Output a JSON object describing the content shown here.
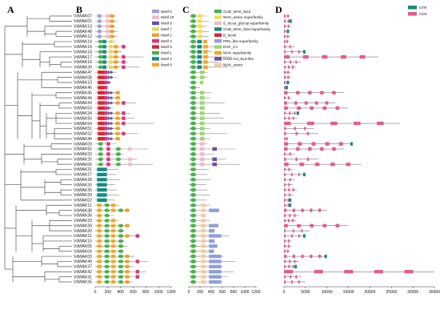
{
  "panels": {
    "a": "A",
    "b": "B",
    "c": "C",
    "d": "D"
  },
  "genes": [
    "VdWAK07",
    "VdWAK01",
    "VdWAK13",
    "VdWAK48",
    "VdWAK12",
    "VdWAK14",
    "VdWAK19",
    "VdWAK18",
    "VdWAK17",
    "VdWAK16",
    "VdWAK39",
    "VdWAK47",
    "VdWAK08",
    "VdWAK10",
    "VdWAK46",
    "VdWAK45",
    "VdWAK44",
    "VdWAK43",
    "VdWAK53",
    "VdWAK34",
    "VdWAK55",
    "VdWAK54",
    "VdWAK51",
    "VdWAK52",
    "VdWAK49",
    "VdWAK09",
    "VdWAK50",
    "VdWAK33",
    "VdWAK25",
    "VdWAK06",
    "VdWAK31",
    "VdWAK27",
    "VdWAK28",
    "VdWAK30",
    "VdWAK26",
    "VdWAK29",
    "VdWAK02",
    "VdWAK11",
    "VdWAK38",
    "VdWAK36",
    "VdWAK23",
    "VdWAK39",
    "VdWAK20",
    "VdWAK21",
    "VdWAK15",
    "VdWAK05",
    "VdWAK04",
    "VdWAK03",
    "VdWAK40",
    "VdWAK37",
    "VdWAK42",
    "VdWAK41",
    "VdWAK35"
  ],
  "motif_legend": [
    {
      "name": "Motif 6",
      "color": "#9aa0d8"
    },
    {
      "name": "Motif 10",
      "color": "#f2b8cf"
    },
    {
      "name": "Motif 9",
      "color": "#6a4fa3"
    },
    {
      "name": "Motif 7",
      "color": "#e6d95a"
    },
    {
      "name": "Motif 2",
      "color": "#f0a12a"
    },
    {
      "name": "Motif 3",
      "color": "#e3317a"
    },
    {
      "name": "Motif 5",
      "color": "#e0232e"
    },
    {
      "name": "Motif 1",
      "color": "#48b34a"
    },
    {
      "name": "Motif 4",
      "color": "#138c84"
    },
    {
      "name": "Motif 8",
      "color": "#f5a623"
    }
  ],
  "domain_legend": [
    {
      "name": "GUB_WAK_bind",
      "color": "#48b34a"
    },
    {
      "name": "WAK_assoc superfamily",
      "color": "#f0e04a"
    },
    {
      "name": "S_locus_glycop superfamily",
      "color": "#f2b8cf"
    },
    {
      "name": "GUB_WAK_bind superfamily",
      "color": "#138c84"
    },
    {
      "name": "B_lectin",
      "color": "#e0232e"
    },
    {
      "name": "PRK_like superfamily",
      "color": "#8fa0d6"
    },
    {
      "name": "EGF_CA",
      "color": "#9ad86b"
    },
    {
      "name": "WAK superfamily",
      "color": "#f5a623"
    },
    {
      "name": "RING-H2_EL5-like",
      "color": "#6a4fa3"
    },
    {
      "name": "WAK_assoc",
      "color": "#f7c8a0"
    }
  ],
  "structure_legend": [
    {
      "name": "UTR",
      "color": "#138c84"
    },
    {
      "name": "CDS",
      "color": "#e95b8a"
    }
  ],
  "axis_b": {
    "ticks": [
      "0",
      "200",
      "400",
      "600",
      "800",
      "1000",
      "1200"
    ],
    "max": 1200
  },
  "axis_c": {
    "ticks": [
      "0",
      "200",
      "400",
      "600",
      "800",
      "1000",
      "1200"
    ],
    "max": 1200
  },
  "axis_d": {
    "ticks": [
      "0",
      "5000",
      "10000",
      "15000",
      "20000",
      "25000",
      "30000",
      "35000"
    ],
    "max": 35000
  },
  "protein_lengths": [
    330,
    360,
    320,
    360,
    350,
    330,
    500,
    420,
    760,
    520,
    700,
    340,
    350,
    260,
    200,
    400,
    380,
    640,
    280,
    560,
    620,
    930,
    380,
    670,
    380,
    330,
    830,
    450,
    660,
    910,
    360,
    330,
    390,
    310,
    340,
    380,
    320,
    380,
    540,
    300,
    380,
    530,
    460,
    720,
    460,
    510,
    450,
    620,
    830,
    600,
    800,
    700,
    600
  ],
  "gene_lengths": [
    1500,
    1800,
    1700,
    1200,
    1400,
    1200,
    2500,
    5000,
    22000,
    4000,
    2800,
    1500,
    1600,
    1200,
    900,
    14000,
    1800,
    12000,
    15000,
    3500,
    3000,
    27000,
    7000,
    8000,
    1000,
    16000,
    14000,
    2500,
    8000,
    18000,
    2000,
    5000,
    2500,
    2000,
    3000,
    2200,
    1700,
    1700,
    10000,
    3500,
    2800,
    15000,
    6000,
    5000,
    1800,
    1800,
    1400,
    10000,
    3500,
    3000,
    35000,
    4000,
    5000
  ]
}
